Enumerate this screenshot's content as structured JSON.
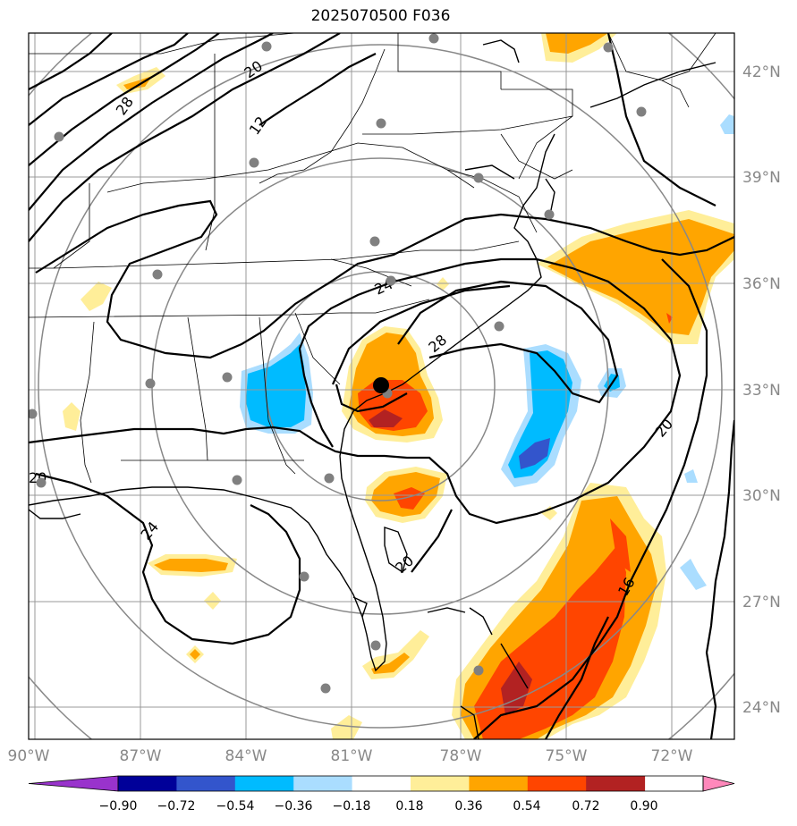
{
  "title": "2025070500 F036",
  "map": {
    "lon_labels": [
      "90°W",
      "87°W",
      "84°W",
      "81°W",
      "78°W",
      "75°W",
      "72°W"
    ],
    "lat_labels": [
      "42°N",
      "39°N",
      "36°N",
      "33°N",
      "30°N",
      "27°N",
      "24°N"
    ],
    "contour_labels": [
      "20",
      "28",
      "12",
      "24",
      "28",
      "20",
      "24",
      "20",
      "16",
      "20"
    ],
    "storm_center": {
      "lon": -80.1,
      "lat": 33.1
    }
  },
  "colorbar": {
    "ticks": [
      "−0.90",
      "−0.72",
      "−0.54",
      "−0.36",
      "−0.18",
      "0.18",
      "0.36",
      "0.54",
      "0.72",
      "0.90"
    ],
    "colors": [
      "#9933cc",
      "#000099",
      "#3355cc",
      "#00bbff",
      "#aaddff",
      "#ffffff",
      "#ffee99",
      "#ffa500",
      "#ff4500",
      "#b22222",
      "#ff88bb"
    ]
  }
}
